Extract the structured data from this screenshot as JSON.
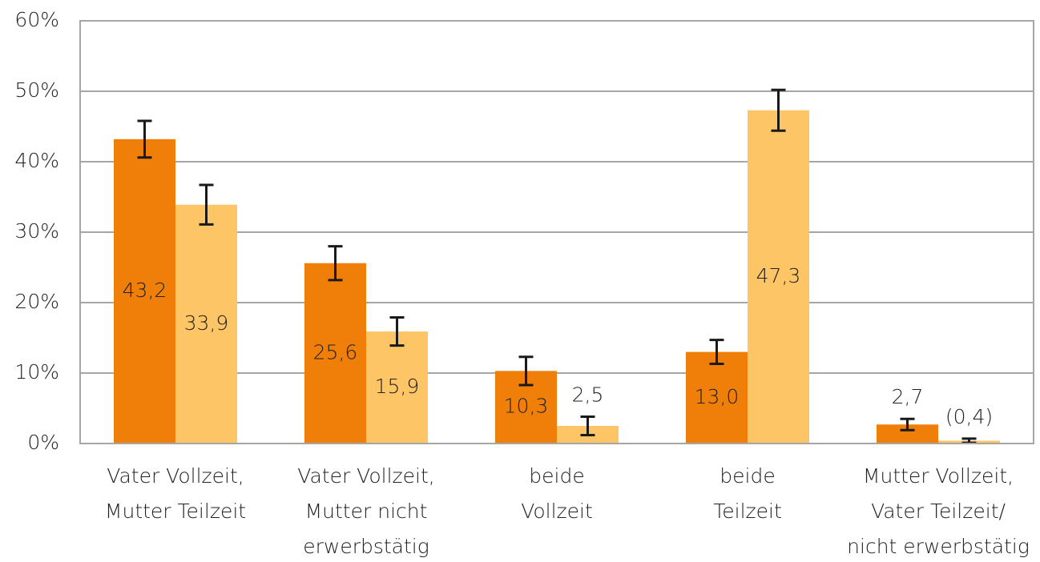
{
  "chart_data": {
    "type": "bar",
    "categories": [
      [
        "Vater Vollzeit,",
        "Mutter Teilzeit"
      ],
      [
        "Vater Vollzeit,",
        "Mutter nicht",
        "erwerbstätig"
      ],
      [
        "beide",
        "Vollzeit"
      ],
      [
        "beide",
        "Teilzeit"
      ],
      [
        "Mutter Vollzeit,",
        "Vater Teilzeit/",
        "nicht erwerbstätig"
      ]
    ],
    "series": [
      {
        "color": "#f07f09",
        "values": [
          43.2,
          25.6,
          10.3,
          13.0,
          2.7
        ],
        "value_labels": [
          "43,2",
          "25,6",
          "10,3",
          "13,0",
          "2,7"
        ],
        "errors": [
          2.6,
          2.4,
          2.0,
          1.7,
          0.8
        ]
      },
      {
        "color": "#fdc566",
        "values": [
          33.9,
          15.9,
          2.5,
          47.3,
          0.4
        ],
        "value_labels": [
          "33,9",
          "15,9",
          "2,5",
          "47,3",
          "(0,4)"
        ],
        "errors": [
          2.8,
          2.0,
          1.3,
          2.9,
          0.3
        ]
      }
    ],
    "ylim": [
      0,
      60
    ],
    "yticks": [
      {
        "value": 0,
        "label": "0%"
      },
      {
        "value": 10,
        "label": "10%"
      },
      {
        "value": 20,
        "label": "20%"
      },
      {
        "value": 30,
        "label": "30%"
      },
      {
        "value": 40,
        "label": "40%"
      },
      {
        "value": 50,
        "label": "50%"
      },
      {
        "value": 60,
        "label": "60%"
      }
    ],
    "grid": true
  }
}
